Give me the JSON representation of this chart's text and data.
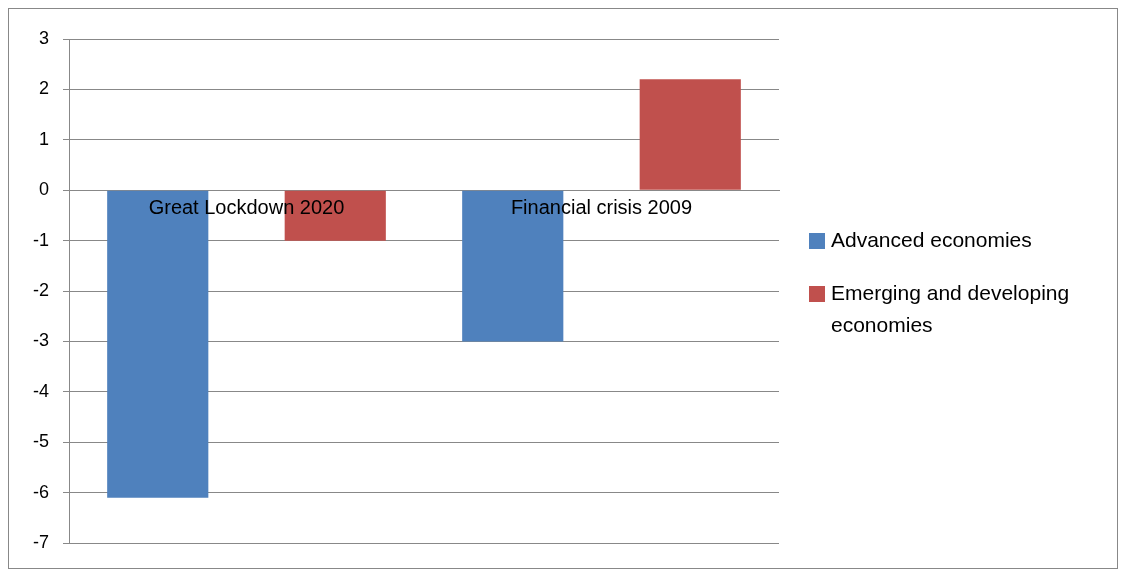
{
  "chart_data": {
    "type": "bar",
    "categories": [
      "Great Lockdown 2020",
      "Financial crisis 2009"
    ],
    "series": [
      {
        "name": "Advanced economies",
        "color": "#4f81bd",
        "values": [
          -6.1,
          -3.0
        ]
      },
      {
        "name": "Emerging and developing economies",
        "color": "#c0504d",
        "values": [
          -1.0,
          2.2
        ]
      }
    ],
    "ylim": [
      -7,
      3
    ],
    "yticks": [
      -7,
      -6,
      -5,
      -4,
      -3,
      -2,
      -1,
      0,
      1,
      2,
      3
    ],
    "grid": "y",
    "legend": "right"
  }
}
